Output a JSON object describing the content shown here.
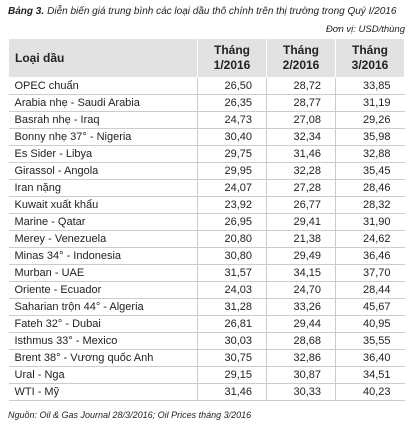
{
  "caption": {
    "label": "Bảng 3.",
    "text": "Diễn biến giá trung bình các loại dầu thô chính trên thị trường trong Quý I/2016"
  },
  "unit": "Đơn vị: USD/thùng",
  "table": {
    "header": [
      "Loại dầu",
      "Tháng 1/2016",
      "Tháng 2/2016",
      "Tháng 3/2016"
    ],
    "rows": [
      [
        "OPEC chuẩn",
        "26,50",
        "28,72",
        "33,85"
      ],
      [
        "Arabia nhẹ - Saudi Arabia",
        "26,35",
        "28,77",
        "31,19"
      ],
      [
        "Basrah nhẹ - Iraq",
        "24,73",
        "27,08",
        "29,26"
      ],
      [
        "Bonny nhẹ 37° - Nigeria",
        "30,40",
        "32,34",
        "35,98"
      ],
      [
        "Es Sider - Libya",
        "29,75",
        "31,46",
        "32,88"
      ],
      [
        "Girassol - Angola",
        "29,95",
        "32,28",
        "35,45"
      ],
      [
        "Iran nặng",
        "24,07",
        "27,28",
        "28,46"
      ],
      [
        "Kuwait xuất khẩu",
        "23,92",
        "26,77",
        "28,32"
      ],
      [
        "Marine - Qatar",
        "26,95",
        "29,41",
        "31,90"
      ],
      [
        "Merey - Venezuela",
        "20,80",
        "21,38",
        "24,62"
      ],
      [
        "Minas 34° - Indonesia",
        "30,80",
        "29,49",
        "36,46"
      ],
      [
        "Murban - UAE",
        "31,57",
        "34,15",
        "37,70"
      ],
      [
        "Oriente - Ecuador",
        "24,03",
        "24,70",
        "28,44"
      ],
      [
        "Saharian trộn 44° - Algeria",
        "31,28",
        "33,26",
        "45,67"
      ],
      [
        "Fateh 32° - Dubai",
        "26,81",
        "29,44",
        "40,95"
      ],
      [
        "Isthmus 33° - Mexico",
        "30,03",
        "28,68",
        "35,55"
      ],
      [
        "Brent 38° - Vương quốc Anh",
        "30,75",
        "32,86",
        "36,40"
      ],
      [
        "Ural - Nga",
        "29,15",
        "30,87",
        "34,51"
      ],
      [
        "WTI - Mỹ",
        "31,46",
        "30,33",
        "40,23"
      ]
    ]
  },
  "source": "Nguồn: Oil & Gas Journal 28/3/2016; Oil Prices tháng 3/2016"
}
